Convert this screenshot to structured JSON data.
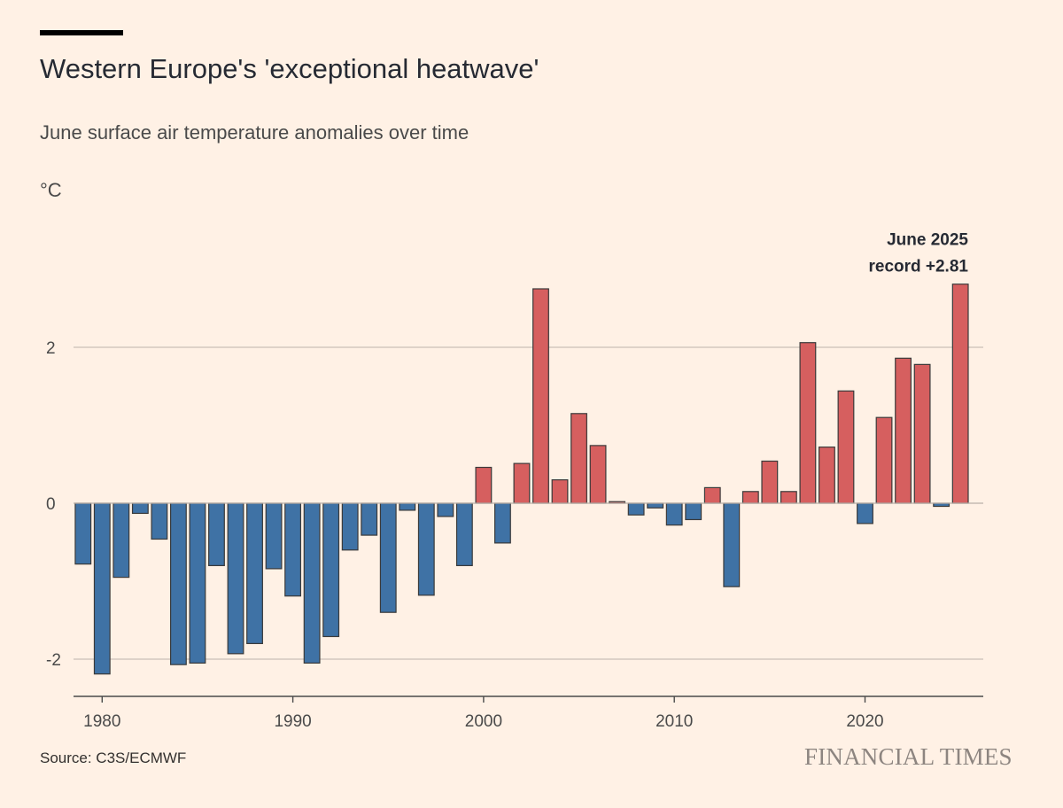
{
  "header": {
    "title": "Western Europe's 'exceptional heatwave'",
    "subtitle": "June surface air temperature anomalies over time",
    "unit": "°C"
  },
  "footer": {
    "source": "Source: C3S/ECMWF",
    "brand": "FINANCIAL TIMES"
  },
  "colors": {
    "background": "#fff1e5",
    "positive": "#d65f5f",
    "negative": "#3f72a5",
    "bar_outline": "#3a3a3a",
    "gridline": "#c9bfb7",
    "axis": "#4a4a4a"
  },
  "chart_data": {
    "type": "bar",
    "title": "Western Europe's 'exceptional heatwave'",
    "subtitle": "June surface air temperature anomalies over time",
    "ylabel": "°C",
    "xlabel": "",
    "ylim": [
      -2.4,
      3.1
    ],
    "xlim": [
      1979,
      2026.7
    ],
    "y_ticks": [
      2,
      0,
      -2
    ],
    "y_tick_labels": [
      "2",
      "0",
      "-2"
    ],
    "x_ticks": [
      1980,
      1990,
      2000,
      2010,
      2020
    ],
    "x_tick_labels": [
      "1980",
      "1990",
      "2000",
      "2010",
      "2020"
    ],
    "grid": true,
    "categories": [
      1979,
      1980,
      1981,
      1982,
      1983,
      1984,
      1985,
      1986,
      1987,
      1988,
      1989,
      1990,
      1991,
      1992,
      1993,
      1994,
      1995,
      1996,
      1997,
      1998,
      1999,
      2000,
      2001,
      2002,
      2003,
      2004,
      2005,
      2006,
      2007,
      2008,
      2009,
      2010,
      2011,
      2012,
      2013,
      2014,
      2015,
      2016,
      2017,
      2018,
      2019,
      2020,
      2021,
      2022,
      2023,
      2024,
      2025
    ],
    "values": [
      -0.78,
      -2.19,
      -0.95,
      -0.13,
      -0.46,
      -2.07,
      -2.05,
      -0.8,
      -1.93,
      -1.8,
      -0.84,
      -1.19,
      -2.05,
      -1.71,
      -0.6,
      -0.41,
      -1.4,
      -0.09,
      -1.18,
      -0.17,
      -0.8,
      0.46,
      -0.51,
      0.51,
      2.75,
      0.3,
      1.15,
      0.74,
      0.02,
      -0.15,
      -0.06,
      -0.28,
      -0.21,
      0.2,
      -1.07,
      0.15,
      0.54,
      0.15,
      2.06,
      0.72,
      1.44,
      -0.26,
      1.1,
      1.86,
      1.78,
      -0.04,
      2.81
    ],
    "annotations": [
      {
        "year": 2025,
        "lines": [
          "June 2025",
          "record +2.81"
        ]
      }
    ]
  }
}
